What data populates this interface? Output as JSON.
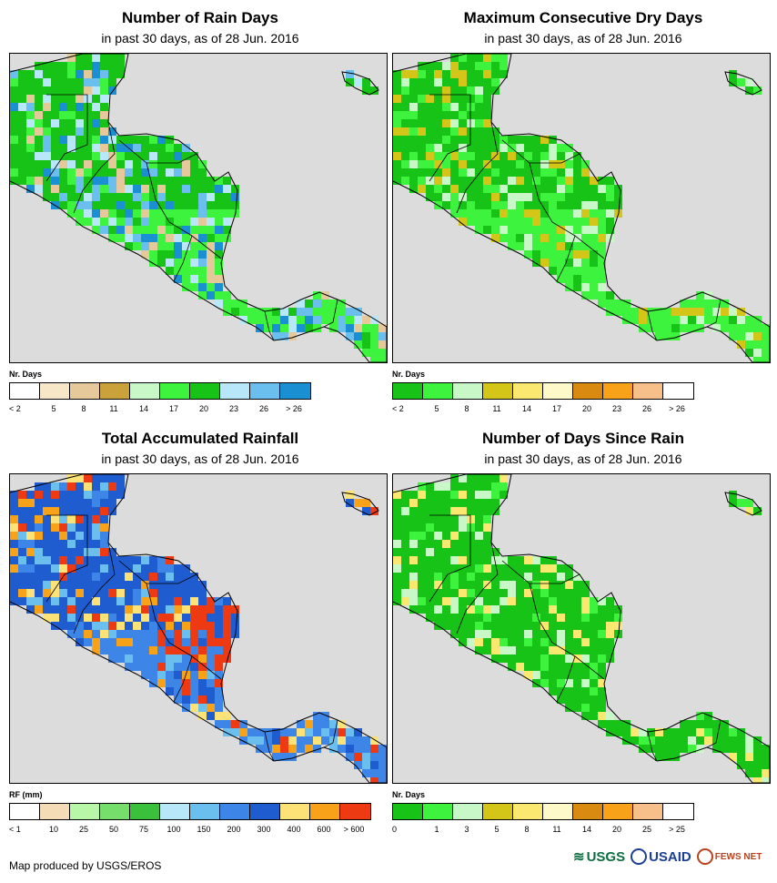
{
  "panels": [
    {
      "id": "rain-days",
      "title": "Number of Rain Days",
      "subtitle": "in past 30 days, as of 28 Jun. 2016",
      "legend_title": "Nr. Days",
      "legend_labels": [
        "< 2",
        "5",
        "8",
        "11",
        "14",
        "17",
        "20",
        "23",
        "26",
        "> 26"
      ],
      "legend_colors": [
        "#ffffff",
        "#f7e6c8",
        "#e5c99a",
        "#c9a23c",
        "#c8f7c8",
        "#3ef33e",
        "#16c316",
        "#b9e7fa",
        "#6bbfee",
        "#1a8fd1"
      ],
      "map_palette": [
        "#16c316",
        "#3ef33e",
        "#b9e7fa",
        "#6bbfee",
        "#1a8fd1",
        "#e5c99a"
      ]
    },
    {
      "id": "max-dry-days",
      "title": "Maximum Consecutive Dry Days",
      "subtitle": "in past 30 days, as of 28 Jun. 2016",
      "legend_title": "Nr. Days",
      "legend_labels": [
        "< 2",
        "5",
        "8",
        "11",
        "14",
        "17",
        "20",
        "23",
        "26",
        "> 26"
      ],
      "legend_colors": [
        "#16c316",
        "#3ef33e",
        "#c8f7c8",
        "#d4c619",
        "#fbe870",
        "#fdf9c8",
        "#d98a11",
        "#f8a21a",
        "#f7c08a",
        "#ffffff"
      ],
      "map_palette": [
        "#16c316",
        "#3ef33e",
        "#3ef33e",
        "#c8f7c8",
        "#d4c619"
      ]
    },
    {
      "id": "total-rainfall",
      "title": "Total Accumulated Rainfall",
      "subtitle": "in past 30 days, as of 28 Jun. 2016",
      "legend_title": "RF (mm)",
      "legend_labels": [
        "< 1",
        "10",
        "25",
        "50",
        "75",
        "100",
        "150",
        "200",
        "300",
        "400",
        "600",
        "> 600"
      ],
      "legend_colors": [
        "#ffffff",
        "#f3dcb6",
        "#b8f7a8",
        "#76de6a",
        "#3ac03a",
        "#b9e7fa",
        "#6bbfee",
        "#3d86e8",
        "#1f5ccf",
        "#fde278",
        "#f8a21a",
        "#ee3a12"
      ],
      "map_palette": [
        "#1f5ccf",
        "#3d86e8",
        "#fde278",
        "#f8a21a",
        "#ee3a12",
        "#6bbfee"
      ]
    },
    {
      "id": "days-since-rain",
      "title": "Number of Days Since Rain",
      "subtitle": "in past 30 days, as of 28 Jun. 2016",
      "legend_title": "Nr. Days",
      "legend_labels": [
        "0",
        "1",
        "3",
        "5",
        "8",
        "11",
        "14",
        "20",
        "25",
        "> 25"
      ],
      "legend_colors": [
        "#16c316",
        "#3ef33e",
        "#c8f7c8",
        "#d4c619",
        "#fbe870",
        "#fdf9c8",
        "#d98a11",
        "#f8a21a",
        "#f7c08a",
        "#ffffff"
      ],
      "map_palette": [
        "#16c316",
        "#16c316",
        "#3ef33e",
        "#c8f7c8",
        "#fbe870"
      ]
    }
  ],
  "footer": {
    "credit": "Map produced by USGS/EROS",
    "logos": [
      "USGS",
      "USAID",
      "FEWS NET"
    ]
  }
}
